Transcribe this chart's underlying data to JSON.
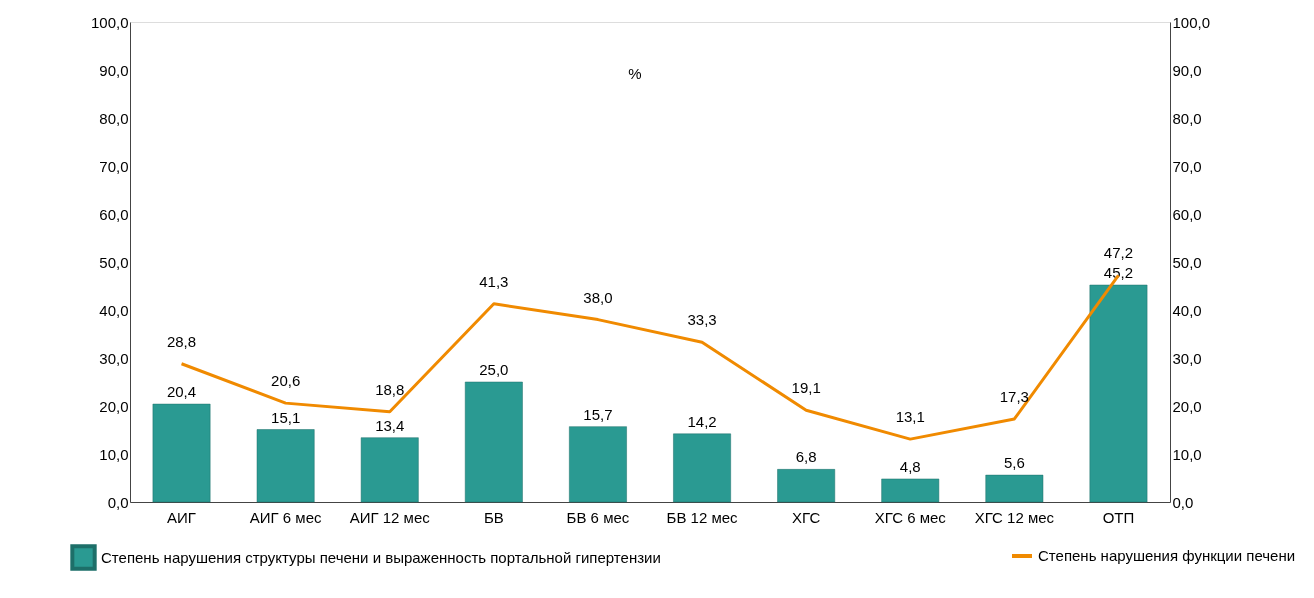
{
  "chart_data": {
    "type": "bar",
    "categories": [
      "АИГ",
      "АИГ 6 мес",
      "АИГ 12 мес",
      "БВ",
      "БВ 6 мес",
      "БВ 12 мес",
      "ХГС",
      "ХГС 6 мес",
      "ХГС 12 мес",
      "ОТП"
    ],
    "series": [
      {
        "name": "Степень нарушения структуры печени и выраженность портальной гипертензии",
        "color": "#2a9a92",
        "values": [
          20.4,
          15.1,
          13.4,
          25.0,
          15.7,
          14.2,
          6.8,
          4.8,
          5.6,
          45.2
        ],
        "value_labels": [
          "20,4",
          "15,1",
          "13,4",
          "25,0",
          "15,7",
          "14,2",
          "6,8",
          "4,8",
          "5,6",
          "45,2"
        ]
      },
      {
        "name": "Степень нарушения функции печени",
        "type": "line",
        "axis": "y2",
        "color": "#f08a00",
        "values": [
          28.8,
          20.6,
          18.8,
          41.3,
          38.0,
          33.3,
          19.1,
          13.1,
          17.3,
          47.2
        ],
        "value_labels": [
          "28,8",
          "20,6",
          "18,8",
          "41,3",
          "38,0",
          "33,3",
          "19,1",
          "13,1",
          "17,3",
          "47,2"
        ]
      }
    ],
    "ylim": [
      0,
      100
    ],
    "yticks": [
      {
        "value": 0,
        "label": "0,0"
      },
      {
        "value": 10,
        "label": "10,0"
      },
      {
        "value": 20,
        "label": "20,0"
      },
      {
        "value": 30,
        "label": "30,0"
      },
      {
        "value": 40,
        "label": "40,0"
      },
      {
        "value": 50,
        "label": "50,0"
      },
      {
        "value": 60,
        "label": "60,0"
      },
      {
        "value": 70,
        "label": "70,0"
      },
      {
        "value": 80,
        "label": "80,0"
      },
      {
        "value": 90,
        "label": "90,0"
      },
      {
        "value": 100,
        "label": "100,0"
      }
    ],
    "y2lim": [
      0,
      100
    ],
    "y2ticks": [
      {
        "value": 0,
        "label": "0,0"
      },
      {
        "value": 10,
        "label": "10,0"
      },
      {
        "value": 20,
        "label": "20,0"
      },
      {
        "value": 30,
        "label": "30,0"
      },
      {
        "value": 40,
        "label": "40,0"
      },
      {
        "value": 50,
        "label": "50,0"
      },
      {
        "value": 60,
        "label": "60,0"
      },
      {
        "value": 70,
        "label": "70,0"
      },
      {
        "value": 80,
        "label": "80,0"
      },
      {
        "value": 90,
        "label": "90,0"
      },
      {
        "value": 100,
        "label": "100,0"
      }
    ],
    "annotations": [
      "%"
    ],
    "grid": false,
    "legend": "bottom",
    "marker": "none",
    "line_style": "solid"
  }
}
